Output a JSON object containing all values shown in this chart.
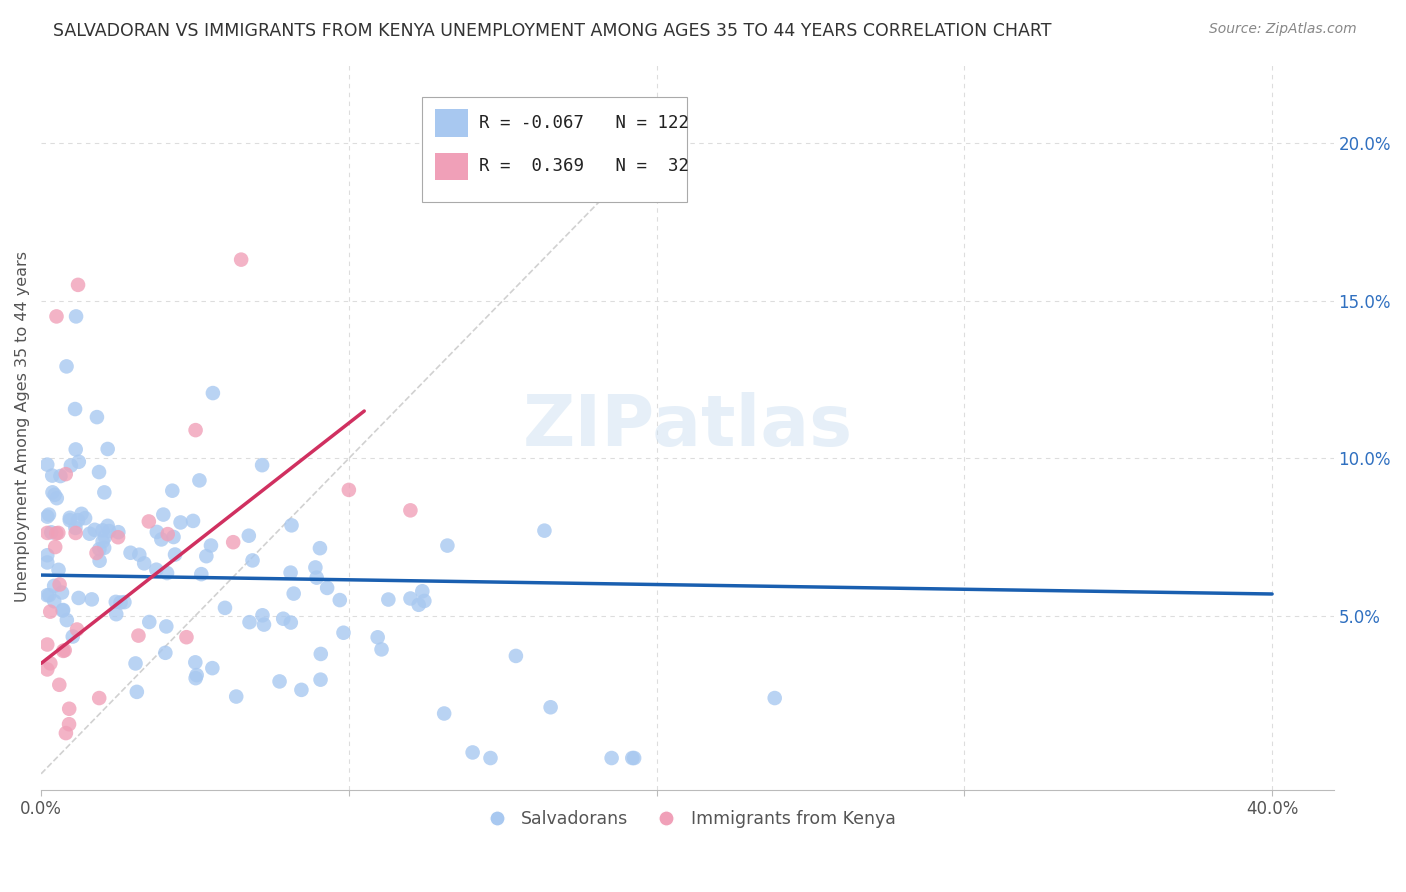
{
  "title": "SALVADORAN VS IMMIGRANTS FROM KENYA UNEMPLOYMENT AMONG AGES 35 TO 44 YEARS CORRELATION CHART",
  "source": "Source: ZipAtlas.com",
  "ylabel": "Unemployment Among Ages 35 to 44 years",
  "xlim": [
    0.0,
    0.42
  ],
  "ylim": [
    -0.005,
    0.225
  ],
  "blue_R": -0.067,
  "blue_N": 122,
  "pink_R": 0.369,
  "pink_N": 32,
  "blue_color": "#a8c8f0",
  "pink_color": "#f0a0b8",
  "blue_line_color": "#1a5fb0",
  "pink_line_color": "#d03060",
  "diagonal_color": "#cccccc",
  "grid_color": "#dddddd",
  "title_color": "#333333",
  "source_color": "#888888",
  "watermark": "ZIPatlas",
  "legend_blue_label": "Salvadorans",
  "legend_pink_label": "Immigrants from Kenya",
  "blue_line_x0": 0.0,
  "blue_line_x1": 0.4,
  "blue_line_y0": 0.063,
  "blue_line_y1": 0.057,
  "pink_line_x0": 0.0,
  "pink_line_x1": 0.105,
  "pink_line_y0": 0.035,
  "pink_line_y1": 0.115
}
